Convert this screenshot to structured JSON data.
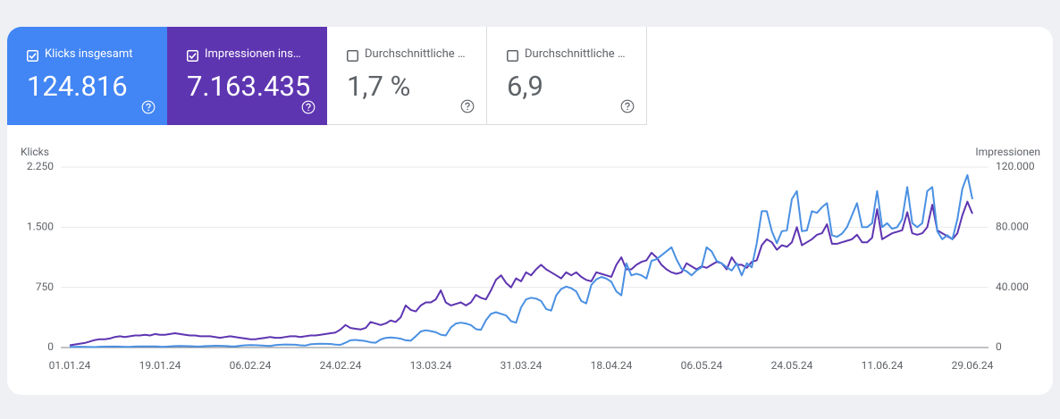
{
  "cards": [
    {
      "label": "Klicks insgesamt",
      "value": "124.816",
      "checked": true,
      "color": "#4285f4"
    },
    {
      "label": "Impressionen ins…",
      "value": "7.163.435",
      "checked": true,
      "color": "#5e35b1"
    },
    {
      "label": "Durchschnittliche …",
      "value": "1,7 %",
      "checked": false,
      "color": "#1e8e3e"
    },
    {
      "label": "Durchschnittliche …",
      "value": "6,9",
      "checked": false,
      "color": "#e8710a"
    }
  ],
  "chart_data": {
    "type": "line",
    "y_label": "Klicks",
    "y2_label": "Impressionen",
    "grid": true,
    "ylim": [
      0,
      2250
    ],
    "yticks": [
      0,
      750,
      {
        "value": 1500,
        "label": "1.500"
      },
      {
        "value": 2250,
        "label": "2.250"
      }
    ],
    "y2lim": [
      0,
      120000
    ],
    "y2ticks": [
      0,
      {
        "value": 40000,
        "label": "40.000"
      },
      {
        "value": 80000,
        "label": "80.000"
      },
      {
        "value": 120000,
        "label": "120.000"
      }
    ],
    "categories": [
      "01.01.24",
      null,
      null,
      null,
      null,
      null,
      null,
      null,
      null,
      null,
      null,
      null,
      null,
      null,
      null,
      null,
      null,
      null,
      "19.01.24",
      null,
      null,
      null,
      null,
      null,
      null,
      null,
      null,
      null,
      null,
      null,
      null,
      null,
      null,
      null,
      null,
      null,
      "06.02.24",
      null,
      null,
      null,
      null,
      null,
      null,
      null,
      null,
      null,
      null,
      null,
      null,
      null,
      null,
      null,
      null,
      null,
      "24.02.24",
      null,
      null,
      null,
      null,
      null,
      null,
      null,
      null,
      null,
      null,
      null,
      null,
      null,
      null,
      null,
      null,
      null,
      "13.03.24",
      null,
      null,
      null,
      null,
      null,
      null,
      null,
      null,
      null,
      null,
      null,
      null,
      null,
      null,
      null,
      null,
      null,
      "31.03.24",
      null,
      null,
      null,
      null,
      null,
      null,
      null,
      null,
      null,
      null,
      null,
      null,
      null,
      null,
      null,
      null,
      null,
      "18.04.24",
      null,
      null,
      null,
      null,
      null,
      null,
      null,
      null,
      null,
      null,
      null,
      null,
      null,
      null,
      null,
      null,
      null,
      "06.05.24",
      null,
      null,
      null,
      null,
      null,
      null,
      null,
      null,
      null,
      null,
      null,
      null,
      null,
      null,
      null,
      null,
      null,
      "24.05.24",
      null,
      null,
      null,
      null,
      null,
      null,
      null,
      null,
      null,
      null,
      null,
      null,
      null,
      null,
      null,
      null,
      null,
      "11.06.24",
      null,
      null,
      null,
      null,
      null,
      null,
      null,
      null,
      null,
      null,
      null,
      null,
      null,
      null,
      null,
      null,
      null,
      "29.06.24"
    ],
    "series": [
      {
        "name": "Klicks",
        "color": "#4a90e2",
        "values": [
          8,
          9,
          10,
          9,
          7,
          6,
          10,
          11,
          12,
          12,
          11,
          9,
          8,
          12,
          14,
          15,
          15,
          14,
          11,
          10,
          15,
          18,
          19,
          18,
          17,
          13,
          12,
          18,
          20,
          22,
          21,
          20,
          16,
          14,
          22,
          28,
          30,
          29,
          27,
          22,
          20,
          30,
          35,
          38,
          36,
          34,
          28,
          25,
          40,
          45,
          48,
          46,
          44,
          36,
          33,
          60,
          90,
          95,
          88,
          80,
          65,
          60,
          100,
          120,
          125,
          120,
          110,
          90,
          85,
          140,
          200,
          215,
          205,
          190,
          160,
          150,
          250,
          300,
          310,
          300,
          280,
          230,
          220,
          340,
          420,
          440,
          420,
          400,
          330,
          310,
          500,
          600,
          620,
          610,
          580,
          480,
          460,
          650,
          730,
          760,
          740,
          700,
          580,
          550,
          780,
          850,
          880,
          860,
          820,
          700,
          650,
          1050,
          900,
          920,
          900,
          860,
          1080,
          1100,
          1150,
          1200,
          1250,
          1100,
          980,
          950,
          900,
          960,
          1000,
          1250,
          1200,
          1080,
          1050,
          1000,
          960,
          1050,
          900,
          1050,
          1000,
          1300,
          1700,
          1700,
          1450,
          1300,
          1450,
          1460,
          1850,
          1950,
          1450,
          1460,
          1700,
          1680,
          1750,
          1800,
          1400,
          1380,
          1420,
          1500,
          1650,
          1800,
          1500,
          1500,
          1550,
          1950,
          1500,
          1550,
          1480,
          1500,
          1600,
          2000,
          1550,
          1500,
          1550,
          1950,
          2000,
          1450,
          1350,
          1400,
          1350,
          1600,
          1980,
          2150,
          1850
        ]
      },
      {
        "name": "Impressionen",
        "color": "#5e35b1",
        "axis": "y2",
        "values": [
          1500,
          2000,
          2500,
          3000,
          4000,
          5000,
          5500,
          5500,
          6000,
          7000,
          7500,
          7000,
          7500,
          8000,
          8000,
          8500,
          8000,
          9000,
          8500,
          8500,
          9000,
          9500,
          9000,
          8500,
          8000,
          8000,
          7500,
          7500,
          7500,
          7000,
          6500,
          7000,
          7500,
          7000,
          6500,
          6000,
          5500,
          5500,
          6000,
          6500,
          7000,
          6500,
          6500,
          7000,
          7500,
          7500,
          7000,
          7500,
          8000,
          8000,
          8500,
          9000,
          9500,
          10000,
          12000,
          15000,
          13000,
          12500,
          12000,
          13000,
          17000,
          16000,
          15000,
          16000,
          18000,
          17000,
          20000,
          28000,
          25000,
          24000,
          28000,
          30000,
          30000,
          32000,
          38000,
          30000,
          28000,
          29000,
          30000,
          28000,
          30000,
          35000,
          33000,
          32000,
          38000,
          45000,
          48000,
          43000,
          40000,
          46000,
          44000,
          50000,
          48000,
          52000,
          55000,
          52000,
          50000,
          48000,
          46000,
          50000,
          48000,
          50000,
          47000,
          45000,
          44000,
          50000,
          49000,
          48000,
          47000,
          55000,
          60000,
          52000,
          52000,
          55000,
          57000,
          58000,
          63000,
          60000,
          55000,
          52000,
          50000,
          49000,
          50000,
          56000,
          54000,
          52000,
          54000,
          53000,
          55000,
          57000,
          56000,
          52000,
          60000,
          55000,
          55000,
          53000,
          57000,
          58000,
          68000,
          72000,
          70000,
          65000,
          68000,
          67000,
          70000,
          80000,
          68000,
          70000,
          72000,
          75000,
          76000,
          82000,
          69000,
          69000,
          70000,
          71000,
          72000,
          75000,
          70000,
          70000,
          73000,
          92000,
          72000,
          74000,
          76000,
          77000,
          78000,
          90000,
          76000,
          75000,
          76000,
          80000,
          95000,
          78000,
          76000,
          74000,
          72000,
          76000,
          88000,
          97000,
          89000
        ]
      }
    ]
  }
}
